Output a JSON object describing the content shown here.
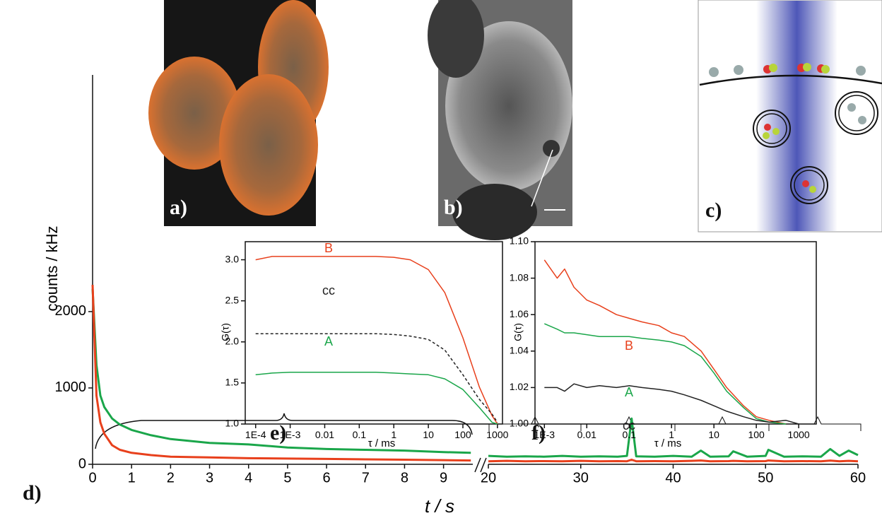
{
  "panels": [
    "a)",
    "b)",
    "c)"
  ],
  "chart_data": [
    {
      "type": "line",
      "panel": "d)",
      "ylabel": "counts / kHz",
      "x": [
        0,
        0.1,
        0.2,
        0.3,
        0.5,
        0.7,
        1,
        1.5,
        2,
        3,
        4,
        5,
        6,
        7,
        8,
        9,
        9.7
      ],
      "series": [
        {
          "color": "#1aa64a",
          "values": [
            2300,
            1300,
            900,
            750,
            600,
            520,
            450,
            380,
            330,
            280,
            260,
            220,
            200,
            190,
            180,
            160,
            150
          ]
        },
        {
          "color": "#e8401c",
          "values": [
            2350,
            900,
            550,
            400,
            250,
            190,
            150,
            120,
            100,
            90,
            80,
            75,
            70,
            65,
            60,
            55,
            50
          ]
        }
      ],
      "xlim": [
        0,
        9.75
      ],
      "xticks": [
        0,
        1,
        2,
        3,
        4,
        5,
        6,
        7,
        8,
        9
      ],
      "ylim": [
        0,
        5100
      ],
      "yticks": [
        0,
        1000,
        2000
      ]
    },
    {
      "type": "line",
      "xlabel": "t / s",
      "x": [
        20,
        22,
        24,
        26,
        28,
        30,
        32,
        34,
        35,
        35.5,
        36,
        38,
        40,
        42,
        43,
        44,
        46,
        46.5,
        48,
        50,
        50.3,
        52,
        54,
        56,
        57,
        58,
        59,
        60
      ],
      "series": [
        {
          "color": "#1aa64a",
          "values": [
            110,
            100,
            105,
            100,
            110,
            100,
            105,
            100,
            110,
            600,
            105,
            100,
            110,
            100,
            180,
            100,
            105,
            170,
            100,
            110,
            190,
            100,
            105,
            100,
            200,
            110,
            180,
            120
          ]
        },
        {
          "color": "#e8401c",
          "values": [
            40,
            45,
            40,
            42,
            40,
            45,
            40,
            42,
            40,
            60,
            40,
            42,
            40,
            45,
            50,
            40,
            42,
            45,
            40,
            42,
            50,
            40,
            42,
            40,
            48,
            40,
            45,
            40
          ]
        }
      ],
      "xlim": [
        20,
        60
      ],
      "xticks": [
        20,
        30,
        40,
        50,
        60
      ],
      "ylim": [
        0,
        5100
      ]
    },
    {
      "type": "line",
      "panel": "e)",
      "xlabel": "τ / ms",
      "ylabel": "G(τ)",
      "xscale": "log",
      "x": [
        0.0001,
        0.0003,
        0.001,
        0.003,
        0.01,
        0.03,
        0.1,
        0.3,
        1,
        3,
        10,
        30,
        100,
        300,
        700,
        1000
      ],
      "series": [
        {
          "name": "B",
          "color": "#e8401c",
          "values": [
            3.0,
            3.04,
            3.04,
            3.04,
            3.04,
            3.04,
            3.04,
            3.04,
            3.03,
            3.0,
            2.88,
            2.6,
            2.05,
            1.45,
            1.1,
            1.0
          ]
        },
        {
          "name": "cc",
          "color": "#222222",
          "style": "dashed",
          "values": [
            2.1,
            2.1,
            2.1,
            2.1,
            2.1,
            2.1,
            2.1,
            2.1,
            2.09,
            2.07,
            2.03,
            1.9,
            1.6,
            1.3,
            1.12,
            1.02
          ]
        },
        {
          "name": "A",
          "color": "#1aa64a",
          "values": [
            1.6,
            1.62,
            1.63,
            1.63,
            1.63,
            1.63,
            1.63,
            1.63,
            1.62,
            1.61,
            1.6,
            1.55,
            1.42,
            1.2,
            1.02,
            1.0
          ]
        }
      ],
      "xlim": [
        5e-05,
        1400
      ],
      "xticks": [
        {
          "value": 0.0001,
          "label": "1E-4"
        },
        {
          "value": 0.001,
          "label": "1E-3"
        },
        0.01,
        0.1,
        1,
        10,
        100,
        1000
      ],
      "ylim": [
        1.0,
        3.22
      ],
      "yticks": [
        {
          "value": 1.0,
          "label": "1.0"
        },
        1.5,
        {
          "value": 2.0,
          "label": "2.0"
        },
        2.5,
        {
          "value": 3.0,
          "label": "3.0"
        }
      ]
    },
    {
      "type": "line",
      "panel": "f)",
      "xlabel": "τ / ms",
      "ylabel": "G(τ)",
      "xscale": "log",
      "x": [
        0.001,
        0.002,
        0.003,
        0.005,
        0.01,
        0.02,
        0.05,
        0.1,
        0.2,
        0.5,
        1,
        2,
        5,
        10,
        20,
        50,
        100,
        200,
        500,
        1000
      ],
      "series": [
        {
          "name": "B",
          "color": "#e8401c",
          "values": [
            1.09,
            1.08,
            1.085,
            1.075,
            1.068,
            1.065,
            1.06,
            1.058,
            1.056,
            1.054,
            1.05,
            1.048,
            1.04,
            1.03,
            1.02,
            1.01,
            1.004,
            1.002,
            1.0,
            null
          ]
        },
        {
          "name": "A",
          "color": "#1aa64a",
          "values": [
            1.055,
            1.052,
            1.05,
            1.05,
            1.049,
            1.048,
            1.048,
            1.048,
            1.047,
            1.046,
            1.045,
            1.043,
            1.037,
            1.028,
            1.018,
            1.009,
            1.003,
            1.001,
            1.0,
            null
          ]
        },
        {
          "name": "cc",
          "color": "#222222",
          "values": [
            1.02,
            1.02,
            1.018,
            1.022,
            1.02,
            1.021,
            1.02,
            1.021,
            1.02,
            1.019,
            1.018,
            1.016,
            1.013,
            1.01,
            1.007,
            1.004,
            1.002,
            1.001,
            1.002,
            1.0
          ]
        }
      ],
      "xlim": [
        0.0006,
        2600
      ],
      "xticks": [
        {
          "value": 0.001,
          "label": "1E-3"
        },
        0.01,
        0.1,
        1,
        10,
        100,
        1000
      ],
      "ylim": [
        1.0,
        1.1
      ],
      "yticks": [
        {
          "value": 1.0,
          "label": "1.00"
        },
        1.02,
        1.04,
        1.06,
        1.08,
        {
          "value": 1.1,
          "label": "1.10"
        }
      ]
    }
  ]
}
